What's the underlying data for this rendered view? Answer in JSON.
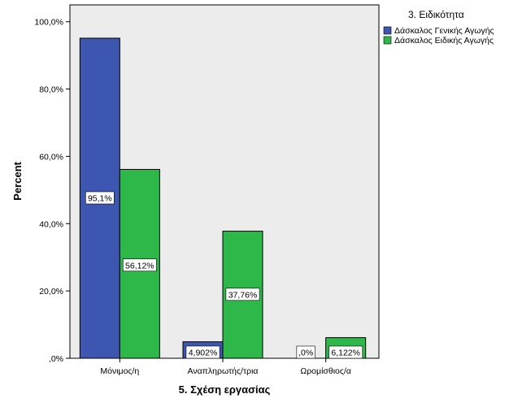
{
  "chart_data": {
    "type": "bar",
    "xlabel": "5. Σχέση εργασίας",
    "ylabel": "Percent",
    "ylim": [
      0,
      105
    ],
    "yticks": [
      0,
      20,
      40,
      60,
      80,
      100
    ],
    "ytick_labels": [
      ",0%",
      "20,0%",
      "40,0%",
      "60,0%",
      "80,0%",
      "100,0%"
    ],
    "categories": [
      "Μόνιμος/η",
      "Αναπληρωτής/τρια",
      "Ωρομίσθιος/α"
    ],
    "legend_title": "3. Ειδικότητα",
    "legend_position": "top-right, outside plot",
    "series": [
      {
        "name": "Δάσκαλος Γενικής Αγωγής",
        "color": "#3d56b0",
        "values": [
          95.1,
          4.902,
          0.0
        ],
        "labels": [
          "95,1%",
          "4,902%",
          ",0%"
        ]
      },
      {
        "name": "Δάσκαλος Ειδικής Αγωγής",
        "color": "#2fb84a",
        "values": [
          56.12,
          37.76,
          6.122
        ],
        "labels": [
          "56,12%",
          "37,76%",
          "6,122%"
        ]
      }
    ],
    "plot_background": "#ececec",
    "grid": false
  }
}
